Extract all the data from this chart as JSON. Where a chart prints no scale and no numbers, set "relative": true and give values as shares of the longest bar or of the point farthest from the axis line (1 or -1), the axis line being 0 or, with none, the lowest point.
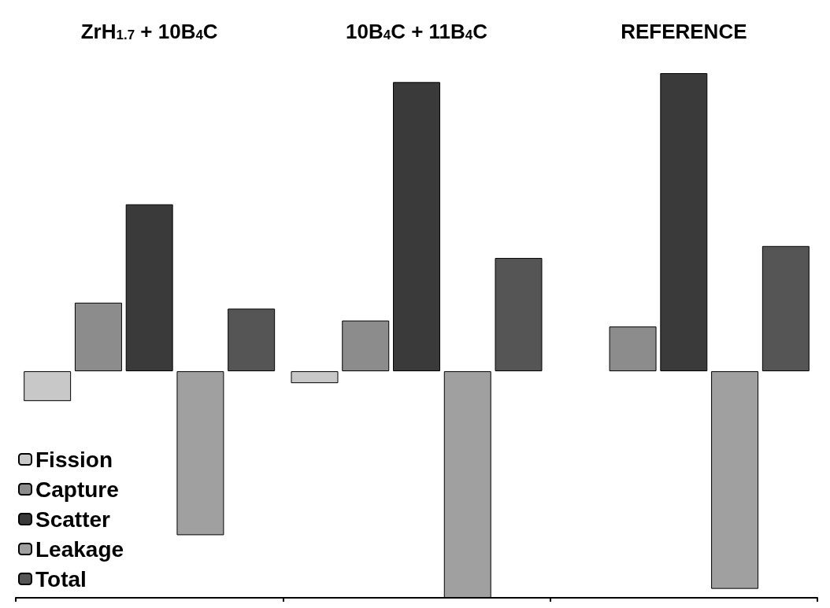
{
  "chart_data": {
    "type": "bar",
    "relative": true,
    "categories": [
      "ZrH$_{1.7}$ + 10B$_{4}$C",
      "10B$_{4}$C + 11B$_{4}$C",
      "REFERENCE"
    ],
    "series": [
      {
        "name": "Fission",
        "color": "#c8c8c8",
        "values": [
          -0.1,
          -0.04,
          null
        ]
      },
      {
        "name": "Capture",
        "color": "#8c8c8c",
        "values": [
          0.23,
          0.17,
          0.15
        ]
      },
      {
        "name": "Scatter",
        "color": "#3a3a3a",
        "values": [
          0.56,
          0.97,
          1
        ]
      },
      {
        "name": "Leakage",
        "color": "#a0a0a0",
        "values": [
          -0.55,
          -0.76,
          -0.73
        ]
      },
      {
        "name": "Total",
        "color": "#555555",
        "values": [
          0.21,
          0.38,
          0.42
        ]
      }
    ],
    "legend": "bottom left",
    "grid": false
  }
}
